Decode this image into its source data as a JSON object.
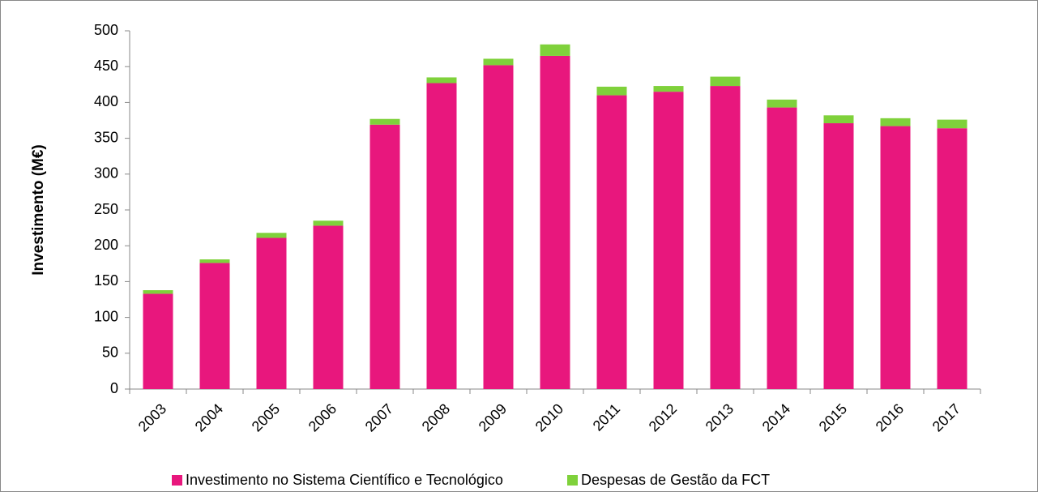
{
  "chart_data": {
    "type": "stacked_bar",
    "y_label": "Investimento (M€)",
    "categories": [
      "2003",
      "2004",
      "2005",
      "2006",
      "2007",
      "2008",
      "2009",
      "2010",
      "2011",
      "2012",
      "2013",
      "2014",
      "2015",
      "2016",
      "2017"
    ],
    "series": [
      {
        "name": "Investimento no Sistema Científico e Tecnológico",
        "color": "#e8177d",
        "values": [
          133,
          176,
          211,
          228,
          369,
          427,
          452,
          465,
          410,
          415,
          423,
          393,
          371,
          367,
          364
        ]
      },
      {
        "name": "Despesas de Gestão da FCT",
        "color": "#7fd13b",
        "values": [
          5,
          5,
          7,
          7,
          8,
          8,
          9,
          16,
          12,
          8,
          13,
          11,
          11,
          11,
          12
        ]
      }
    ],
    "ylim": [
      0,
      500
    ],
    "yticks": [
      0,
      50,
      100,
      150,
      200,
      250,
      300,
      350,
      400,
      450,
      500
    ],
    "grid": false
  }
}
